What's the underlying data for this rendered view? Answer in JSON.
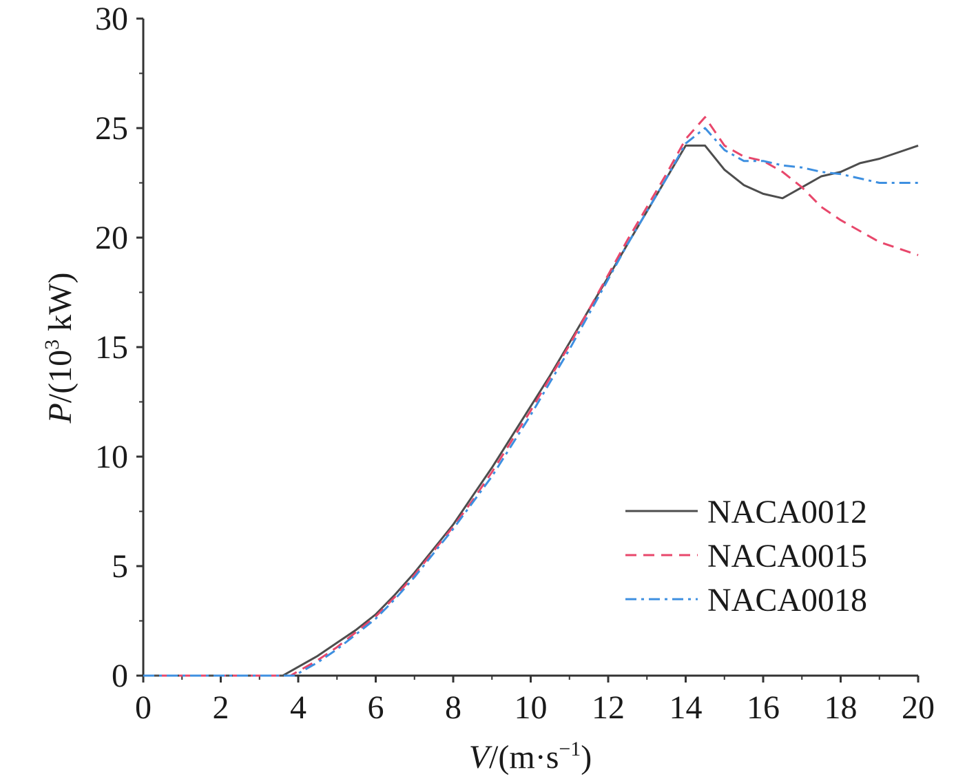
{
  "chart_data": {
    "type": "line",
    "title": "",
    "xlabel": {
      "var": "V",
      "rest": "/(m·s",
      "sup": "−1",
      "close": ")"
    },
    "ylabel": {
      "var": "P",
      "rest": "/(10",
      "sup": "3",
      "unit": " kW)"
    },
    "xlim": [
      0,
      20
    ],
    "ylim": [
      0,
      30
    ],
    "xticks": [
      0,
      2,
      4,
      6,
      8,
      10,
      12,
      14,
      16,
      18,
      20
    ],
    "yticks": [
      0,
      5,
      10,
      15,
      20,
      25,
      30
    ],
    "grid": false,
    "legend_position": "center-right",
    "series": [
      {
        "name": "NACA0012",
        "color": "#4d4d4d",
        "style": "solid",
        "x": [
          0,
          3.6,
          4,
          4.5,
          5,
          5.5,
          6,
          6.5,
          7,
          7.5,
          8,
          8.5,
          9,
          9.5,
          10,
          10.5,
          11,
          11.5,
          12,
          12.5,
          13,
          13.5,
          14,
          14.5,
          15,
          15.5,
          16,
          16.5,
          17,
          17.5,
          18,
          18.5,
          19,
          19.5,
          20
        ],
        "y": [
          0,
          0,
          0.4,
          0.9,
          1.5,
          2.1,
          2.8,
          3.7,
          4.7,
          5.8,
          6.9,
          8.2,
          9.5,
          10.9,
          12.3,
          13.7,
          15.2,
          16.7,
          18.2,
          19.7,
          21.2,
          22.7,
          24.2,
          24.2,
          23.1,
          22.4,
          22.0,
          21.8,
          22.3,
          22.8,
          23.0,
          23.4,
          23.6,
          23.9,
          24.2
        ]
      },
      {
        "name": "NACA0015",
        "color": "#e8476b",
        "style": "dashed",
        "x": [
          0,
          3.8,
          4,
          4.5,
          5,
          5.5,
          6,
          6.5,
          7,
          7.5,
          8,
          8.5,
          9,
          9.5,
          10,
          10.5,
          11,
          11.5,
          12,
          12.5,
          13,
          13.5,
          14,
          14.5,
          15,
          15.5,
          16,
          16.5,
          17,
          17.5,
          18,
          18.5,
          19,
          19.5,
          20
        ],
        "y": [
          0,
          0,
          0.2,
          0.7,
          1.3,
          2.0,
          2.7,
          3.6,
          4.6,
          5.7,
          6.8,
          8.0,
          9.3,
          10.7,
          12.1,
          13.6,
          15.1,
          16.7,
          18.3,
          19.9,
          21.4,
          22.9,
          24.5,
          25.5,
          24.2,
          23.7,
          23.5,
          23.0,
          22.3,
          21.4,
          20.8,
          20.3,
          19.8,
          19.5,
          19.2
        ]
      },
      {
        "name": "NACA0018",
        "color": "#3d8fe0",
        "style": "dashdot",
        "x": [
          0,
          3.9,
          4,
          4.5,
          5,
          5.5,
          6,
          6.5,
          7,
          7.5,
          8,
          8.5,
          9,
          9.5,
          10,
          10.5,
          11,
          11.5,
          12,
          12.5,
          13,
          13.5,
          14,
          14.5,
          15,
          15.5,
          16,
          16.5,
          17,
          17.5,
          18,
          18.5,
          19,
          19.5,
          20
        ],
        "y": [
          0,
          0,
          0.1,
          0.6,
          1.2,
          1.9,
          2.6,
          3.5,
          4.5,
          5.6,
          6.7,
          7.9,
          9.1,
          10.5,
          11.9,
          13.4,
          14.9,
          16.5,
          18.1,
          19.7,
          21.2,
          22.7,
          24.3,
          25.0,
          24.0,
          23.5,
          23.5,
          23.3,
          23.2,
          23.0,
          22.9,
          22.7,
          22.5,
          22.5,
          22.5
        ]
      }
    ]
  }
}
